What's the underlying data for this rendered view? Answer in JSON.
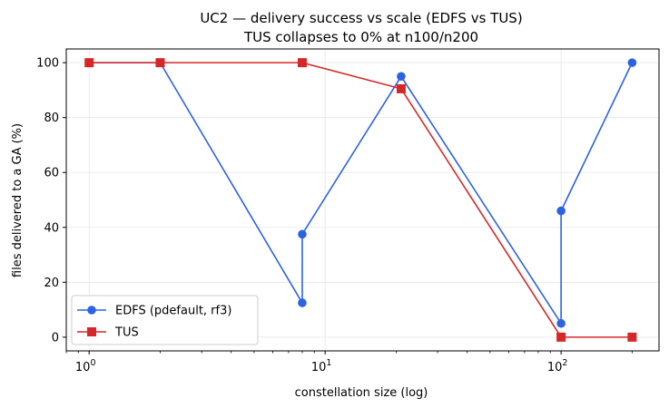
{
  "chart_data": {
    "type": "line",
    "title": "UC2 — delivery success vs scale (EDFS vs TUS)",
    "subtitle": "TUS collapses to 0% at n100/n200",
    "xlabel": "constellation size (log)",
    "ylabel": "files delivered to a GA (%)",
    "xscale": "log",
    "xlim": [
      0.8,
      260
    ],
    "ylim": [
      -5,
      105
    ],
    "x_ticks": [
      {
        "base": "10",
        "exp": "0",
        "value": 1
      },
      {
        "base": "10",
        "exp": "1",
        "value": 10
      },
      {
        "base": "10",
        "exp": "2",
        "value": 100
      }
    ],
    "y_ticks": [
      0,
      20,
      40,
      60,
      80,
      100
    ],
    "grid": true,
    "legend_position": "lower-left",
    "series": [
      {
        "name": "EDFS (pdefault, rf3)",
        "color": "#2b63e0",
        "marker": "circle",
        "x": [
          1,
          2,
          8,
          8,
          21,
          100,
          100,
          200
        ],
        "y": [
          100,
          100,
          12.5,
          37.5,
          95,
          5,
          46,
          100
        ]
      },
      {
        "name": "TUS",
        "color": "#d62728",
        "marker": "square",
        "x": [
          1,
          2,
          8,
          21,
          100,
          200
        ],
        "y": [
          100,
          100,
          100,
          90.5,
          0,
          0
        ]
      }
    ]
  }
}
